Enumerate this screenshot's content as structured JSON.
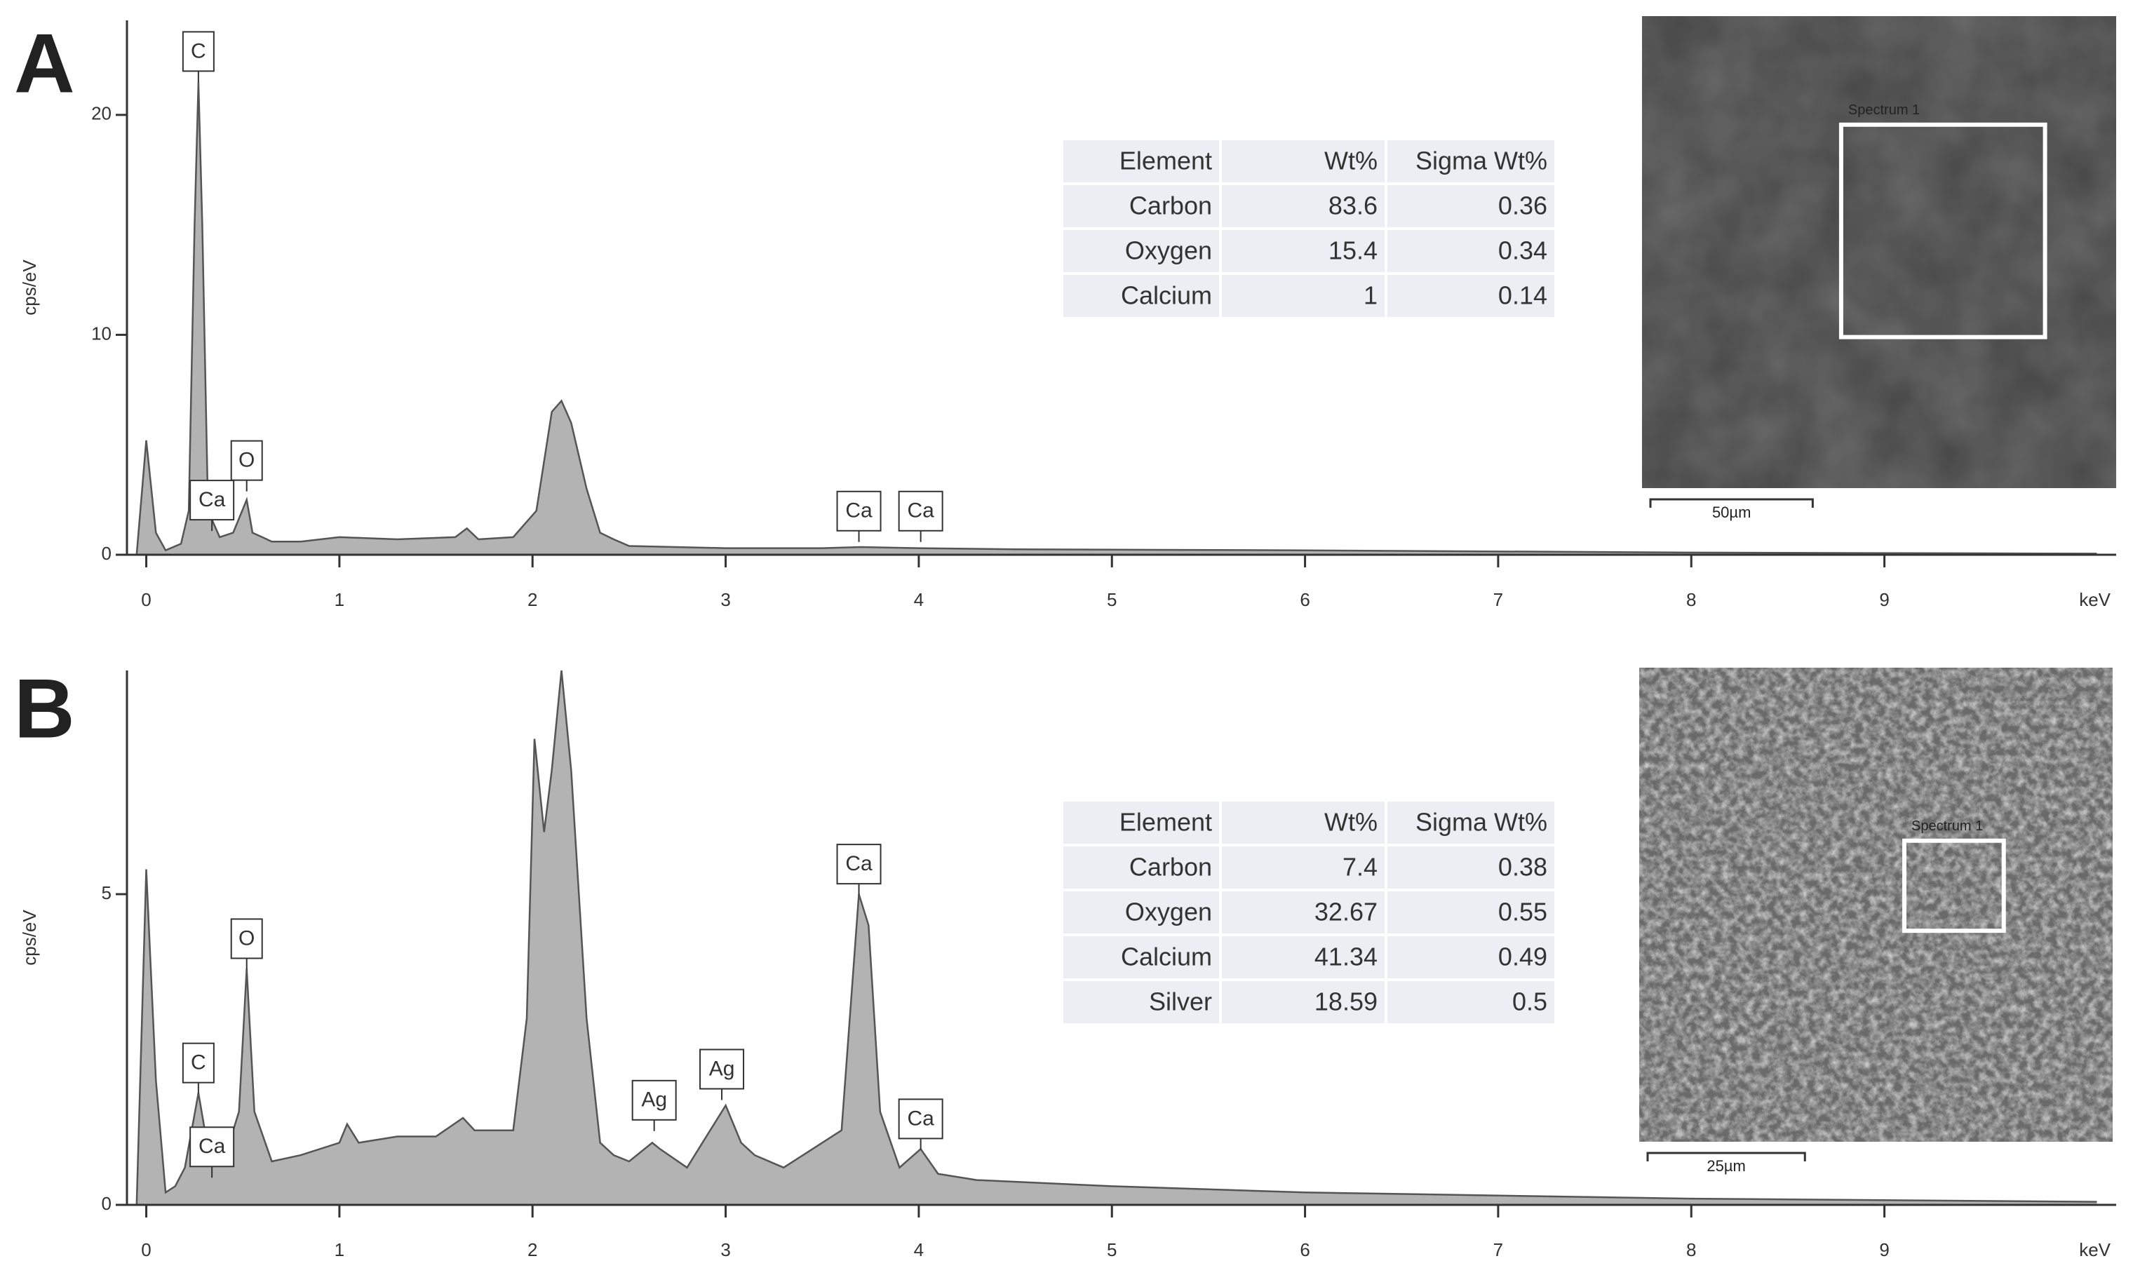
{
  "chart_data": [
    {
      "type": "area",
      "panel": "A",
      "color": "#b3b3b3",
      "line_color": "#555555",
      "x": [
        -0.05,
        0.0,
        0.05,
        0.1,
        0.18,
        0.22,
        0.25,
        0.27,
        0.29,
        0.32,
        0.38,
        0.45,
        0.52,
        0.55,
        0.65,
        0.8,
        1.0,
        1.3,
        1.6,
        1.66,
        1.72,
        1.9,
        2.02,
        2.1,
        2.15,
        2.2,
        2.28,
        2.35,
        2.42,
        2.5,
        3.0,
        3.5,
        3.7,
        4.0,
        4.5,
        6.0,
        8.0,
        10.1
      ],
      "values": [
        0,
        5.2,
        1,
        0.2,
        0.5,
        2,
        15,
        21.5,
        15,
        2,
        0.8,
        1,
        2.5,
        1,
        0.6,
        0.6,
        0.8,
        0.7,
        0.8,
        1.2,
        0.7,
        0.8,
        2,
        6.5,
        7.0,
        6,
        3,
        1,
        0.7,
        0.4,
        0.3,
        0.3,
        0.35,
        0.3,
        0.25,
        0.2,
        0.1,
        0.05
      ],
      "xlim": [
        -0.1,
        10.2
      ],
      "xticks": [
        0,
        1,
        2,
        3,
        4,
        5,
        6,
        7,
        8,
        9
      ],
      "x_unit": "keV",
      "ylabel": "cps/eV",
      "ylim": [
        0,
        24.3
      ],
      "yticks": [
        0,
        10,
        20
      ],
      "annotations": [
        {
          "label": "C",
          "x": 0.27,
          "y": 21.8
        },
        {
          "label": "Ca",
          "x": 0.34,
          "y": 1.4
        },
        {
          "label": "O",
          "x": 0.52,
          "y": 3.2
        },
        {
          "label": "Ca",
          "x": 3.69,
          "y": 0.9
        },
        {
          "label": "Ca",
          "x": 4.01,
          "y": 0.9
        }
      ],
      "table": {
        "columns": [
          "Element",
          "Wt%",
          "Sigma Wt%"
        ],
        "rows": [
          [
            "Carbon",
            83.6,
            0.36
          ],
          [
            "Oxygen",
            15.4,
            0.34
          ],
          [
            "Calcium",
            1,
            0.14
          ]
        ]
      },
      "image": {
        "region_label": "Spectrum 1",
        "scale_bar": "50µm"
      }
    },
    {
      "type": "area",
      "panel": "B",
      "color": "#b3b3b3",
      "line_color": "#555555",
      "x": [
        -0.05,
        0.0,
        0.05,
        0.1,
        0.15,
        0.2,
        0.27,
        0.32,
        0.4,
        0.48,
        0.52,
        0.56,
        0.65,
        0.8,
        1.0,
        1.04,
        1.1,
        1.3,
        1.5,
        1.64,
        1.7,
        1.9,
        1.97,
        2.01,
        2.06,
        2.1,
        2.15,
        2.2,
        2.28,
        2.35,
        2.42,
        2.5,
        2.62,
        2.66,
        2.8,
        2.92,
        3.0,
        3.08,
        3.15,
        3.3,
        3.6,
        3.69,
        3.74,
        3.8,
        3.9,
        4.01,
        4.1,
        4.3,
        5.0,
        6.0,
        8.0,
        10.1
      ],
      "values": [
        0,
        5.4,
        2,
        0.2,
        0.3,
        0.6,
        1.8,
        0.9,
        0.7,
        1.5,
        3.8,
        1.5,
        0.7,
        0.8,
        1.0,
        1.3,
        1.0,
        1.1,
        1.1,
        1.4,
        1.2,
        1.2,
        3,
        7.5,
        6.0,
        7.0,
        8.6,
        7.0,
        3,
        1.0,
        0.8,
        0.7,
        1.0,
        0.9,
        0.6,
        1.2,
        1.6,
        1.0,
        0.8,
        0.6,
        1.2,
        5.0,
        4.5,
        1.5,
        0.6,
        0.9,
        0.5,
        0.4,
        0.3,
        0.2,
        0.1,
        0.05
      ],
      "xlim": [
        -0.1,
        10.2
      ],
      "xticks": [
        0,
        1,
        2,
        3,
        4,
        5,
        6,
        7,
        8,
        9
      ],
      "x_unit": "keV",
      "ylabel": "cps/eV",
      "ylim": [
        0,
        8.6
      ],
      "yticks": [
        0,
        5
      ],
      "annotations": [
        {
          "label": "C",
          "x": 0.27,
          "y": 1.9
        },
        {
          "label": "Ca",
          "x": 0.34,
          "y": 0.55
        },
        {
          "label": "O",
          "x": 0.52,
          "y": 3.9
        },
        {
          "label": "Ag",
          "x": 2.63,
          "y": 1.3
        },
        {
          "label": "Ag",
          "x": 2.98,
          "y": 1.8
        },
        {
          "label": "Ca",
          "x": 3.69,
          "y": 5.1
        },
        {
          "label": "Ca",
          "x": 4.01,
          "y": 1.0
        }
      ],
      "table": {
        "columns": [
          "Element",
          "Wt%",
          "Sigma Wt%"
        ],
        "rows": [
          [
            "Carbon",
            7.4,
            0.38
          ],
          [
            "Oxygen",
            32.67,
            0.55
          ],
          [
            "Calcium",
            41.34,
            0.49
          ],
          [
            "Silver",
            18.59,
            0.5
          ]
        ]
      },
      "image": {
        "region_label": "Spectrum 1",
        "scale_bar": "25µm"
      }
    }
  ]
}
